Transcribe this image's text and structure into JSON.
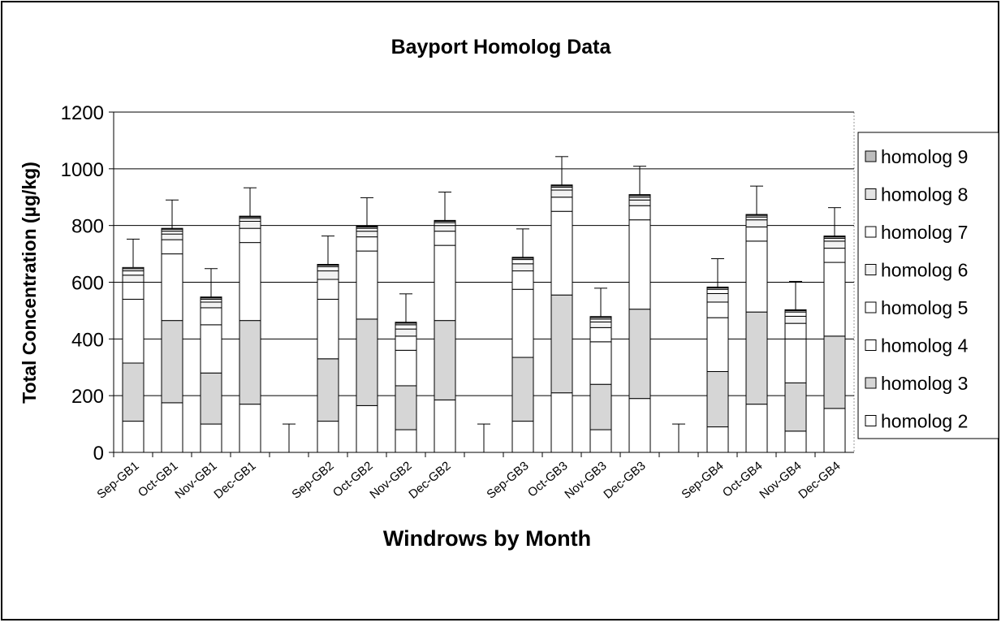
{
  "chart_data": {
    "type": "bar",
    "stacked": true,
    "title": "Bayport Homolog Data",
    "x_label": "Windrows by Month",
    "y_label": "Total Concentration (µg/kg)",
    "categories": [
      "Sep-GB1",
      "Oct-GB1",
      "Nov-GB1",
      "Dec-GB1",
      null,
      "Sep-GB2",
      "Oct-GB2",
      "Nov-GB2",
      "Dec-GB2",
      null,
      "Sep-GB3",
      "Oct-GB3",
      "Nov-GB3",
      "Dec-GB3",
      null,
      "Sep-GB4",
      "Oct-GB4",
      "Nov-GB4",
      "Dec-GB4"
    ],
    "series": [
      {
        "name": "homolog 2",
        "color": "#ffffff",
        "values": [
          110,
          175,
          100,
          170,
          null,
          110,
          165,
          80,
          185,
          null,
          110,
          210,
          80,
          190,
          null,
          90,
          170,
          75,
          155
        ]
      },
      {
        "name": "homolog 3",
        "color": "#d6d6d6",
        "values": [
          205,
          290,
          180,
          295,
          null,
          220,
          305,
          155,
          280,
          null,
          225,
          345,
          160,
          315,
          null,
          195,
          325,
          170,
          255
        ]
      },
      {
        "name": "homolog 4",
        "color": "#ffffff",
        "values": [
          225,
          235,
          170,
          275,
          null,
          210,
          240,
          125,
          265,
          null,
          240,
          295,
          150,
          315,
          null,
          190,
          250,
          155,
          260
        ]
      },
      {
        "name": "homolog 5",
        "color": "#ffffff",
        "values": [
          60,
          50,
          60,
          50,
          null,
          70,
          50,
          50,
          50,
          null,
          65,
          50,
          50,
          50,
          null,
          55,
          50,
          55,
          50
        ]
      },
      {
        "name": "homolog 6",
        "color": "#f2f2f2",
        "values": [
          25,
          20,
          20,
          25,
          null,
          30,
          20,
          25,
          20,
          null,
          25,
          25,
          20,
          20,
          null,
          30,
          25,
          25,
          25
        ]
      },
      {
        "name": "homolog 7",
        "color": "#ffffff",
        "values": [
          15,
          10,
          10,
          10,
          null,
          15,
          10,
          15,
          10,
          null,
          15,
          10,
          10,
          10,
          null,
          15,
          10,
          15,
          10
        ]
      },
      {
        "name": "homolog 8",
        "color": "#e4e4e4",
        "values": [
          8,
          7,
          5,
          5,
          null,
          5,
          5,
          6,
          5,
          null,
          5,
          5,
          6,
          6,
          null,
          5,
          6,
          5,
          5
        ]
      },
      {
        "name": "homolog 9",
        "color": "#bdbdbd",
        "values": [
          4,
          3,
          3,
          3,
          null,
          3,
          3,
          3,
          3,
          null,
          3,
          3,
          3,
          3,
          null,
          3,
          3,
          3,
          3
        ]
      }
    ],
    "errors": [
      100,
      100,
      100,
      100,
      100,
      100,
      100,
      100,
      100,
      100,
      100,
      100,
      100,
      100,
      100,
      100,
      100,
      100,
      100
    ],
    "ylim": [
      0,
      1200
    ],
    "yticks": [
      0,
      200,
      400,
      600,
      800,
      1000,
      1200
    ],
    "grid": true,
    "legend": "right"
  }
}
